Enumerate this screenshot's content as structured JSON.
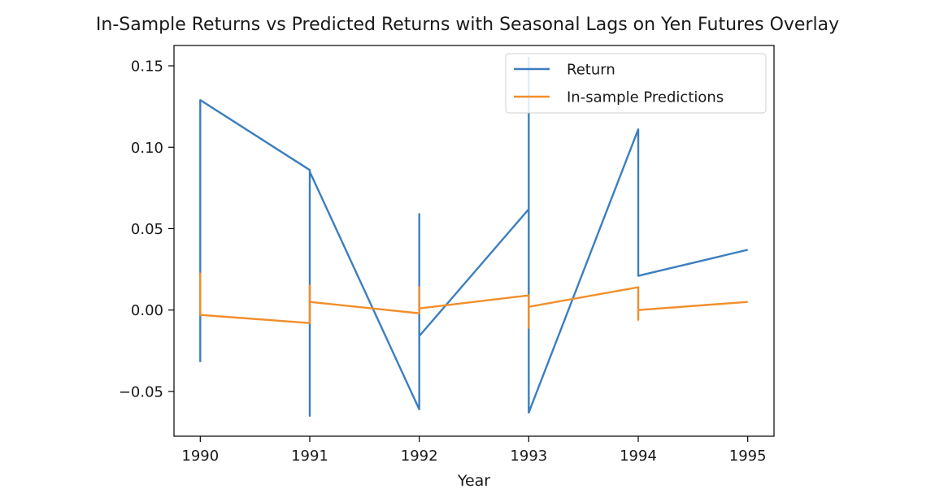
{
  "chart_data": {
    "type": "line",
    "title": "In-Sample Returns vs Predicted Returns with Seasonal Lags on Yen Futures Overlay",
    "xlabel": "Year",
    "ylabel": "",
    "xlim": [
      1989.76,
      1995.24
    ],
    "ylim": [
      -0.0775,
      0.1625
    ],
    "x_ticks": [
      1990,
      1991,
      1992,
      1993,
      1994,
      1995
    ],
    "x_tick_labels": [
      "1990",
      "1991",
      "1992",
      "1993",
      "1994",
      "1995"
    ],
    "y_ticks": [
      -0.05,
      0.0,
      0.05,
      0.1,
      0.15
    ],
    "y_tick_labels": [
      "−0.05",
      "0.00",
      "0.05",
      "0.10",
      "0.15"
    ],
    "grid": false,
    "legend_position": "top-right",
    "series": [
      {
        "name": "Return",
        "color": "#3b7fbf",
        "points": [
          [
            1990,
            -0.032
          ],
          [
            1990,
            0.129
          ],
          [
            1991,
            0.086
          ],
          [
            1991,
            -0.065
          ],
          [
            1991,
            0.085
          ],
          [
            1992,
            -0.061
          ],
          [
            1992,
            0.059
          ],
          [
            1992,
            -0.016
          ],
          [
            1993,
            0.062
          ],
          [
            1993,
            0.155
          ],
          [
            1993,
            -0.063
          ],
          [
            1994,
            0.111
          ],
          [
            1994,
            0.069
          ],
          [
            1994,
            0.021
          ],
          [
            1995,
            0.037
          ]
        ]
      },
      {
        "name": "In-sample Predictions",
        "color": "#f28e2b",
        "points": [
          [
            1990,
            0.023
          ],
          [
            1990,
            -0.003
          ],
          [
            1991,
            -0.008
          ],
          [
            1991,
            0.015
          ],
          [
            1991,
            0.005
          ],
          [
            1992,
            -0.002
          ],
          [
            1992,
            0.014
          ],
          [
            1992,
            0.001
          ],
          [
            1993,
            0.009
          ],
          [
            1993,
            -0.011
          ],
          [
            1993,
            0.002
          ],
          [
            1994,
            0.014
          ],
          [
            1994,
            -0.006
          ],
          [
            1994,
            0.0
          ],
          [
            1995,
            0.005
          ]
        ]
      }
    ]
  }
}
